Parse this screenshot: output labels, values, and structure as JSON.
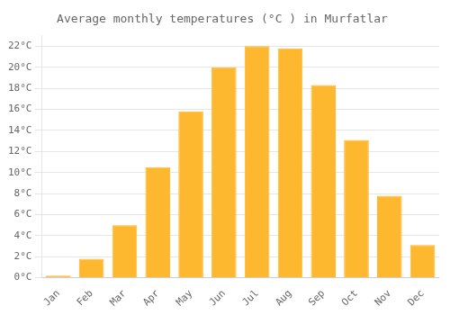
{
  "chart_data": {
    "type": "bar",
    "title": "Average monthly temperatures (°C ) in Murfatlar",
    "categories": [
      "Jan",
      "Feb",
      "Mar",
      "Apr",
      "May",
      "Jun",
      "Jul",
      "Aug",
      "Sep",
      "Oct",
      "Nov",
      "Dec"
    ],
    "values": [
      0.2,
      1.8,
      5.0,
      10.5,
      15.8,
      20.0,
      22.0,
      21.8,
      18.3,
      13.1,
      7.8,
      3.1
    ],
    "color": "#FDB830",
    "ylim": [
      0,
      23
    ],
    "yticks": [
      {
        "value": 0,
        "label": "0°C"
      },
      {
        "value": 2,
        "label": "2°C"
      },
      {
        "value": 4,
        "label": "4°C"
      },
      {
        "value": 6,
        "label": "6°C"
      },
      {
        "value": 8,
        "label": "8°C"
      },
      {
        "value": 10,
        "label": "10°C"
      },
      {
        "value": 12,
        "label": "12°C"
      },
      {
        "value": 14,
        "label": "14°C"
      },
      {
        "value": 16,
        "label": "16°C"
      },
      {
        "value": 18,
        "label": "18°C"
      },
      {
        "value": 20,
        "label": "20°C"
      },
      {
        "value": 22,
        "label": "22°C"
      }
    ],
    "grid": true
  }
}
